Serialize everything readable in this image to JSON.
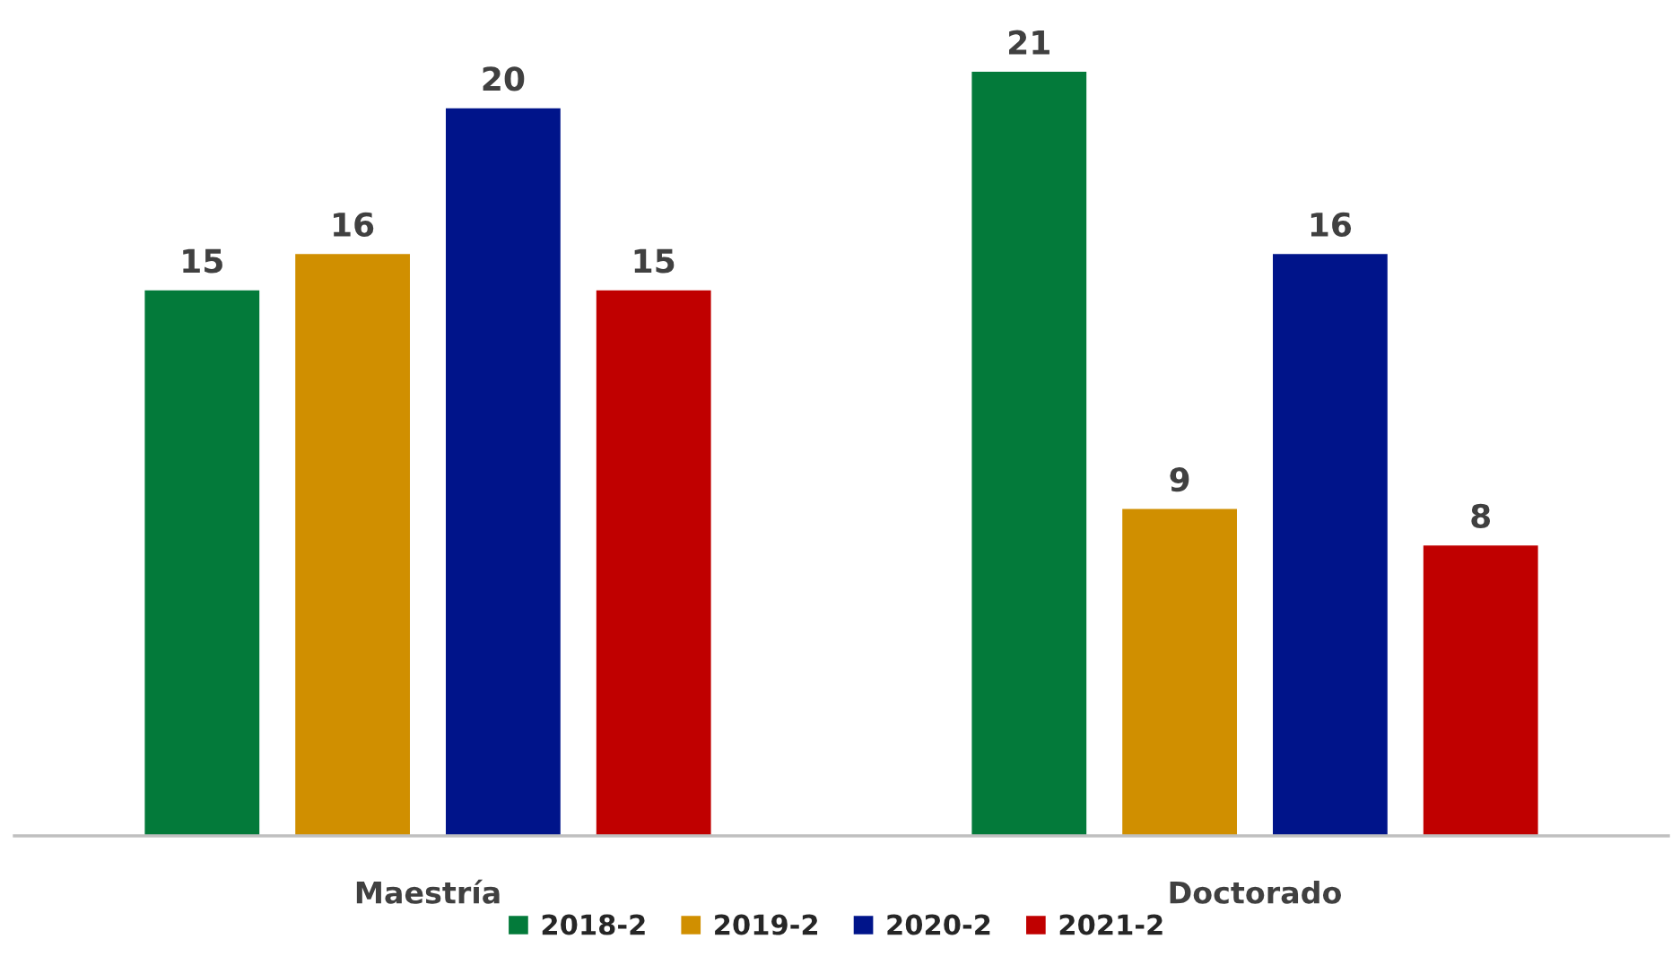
{
  "chart_data": {
    "type": "bar",
    "categories": [
      "Maestría",
      "Doctorado"
    ],
    "series": [
      {
        "name": "2018-2",
        "color": "#037a3a",
        "values": [
          15,
          21
        ]
      },
      {
        "name": "2019-2",
        "color": "#d08f00",
        "values": [
          16,
          9
        ]
      },
      {
        "name": "2020-2",
        "color": "#00148a",
        "values": [
          20,
          16
        ]
      },
      {
        "name": "2021-2",
        "color": "#c00000",
        "values": [
          15,
          8
        ]
      }
    ],
    "data_labels": true,
    "legend": "bottom",
    "grid": false
  }
}
